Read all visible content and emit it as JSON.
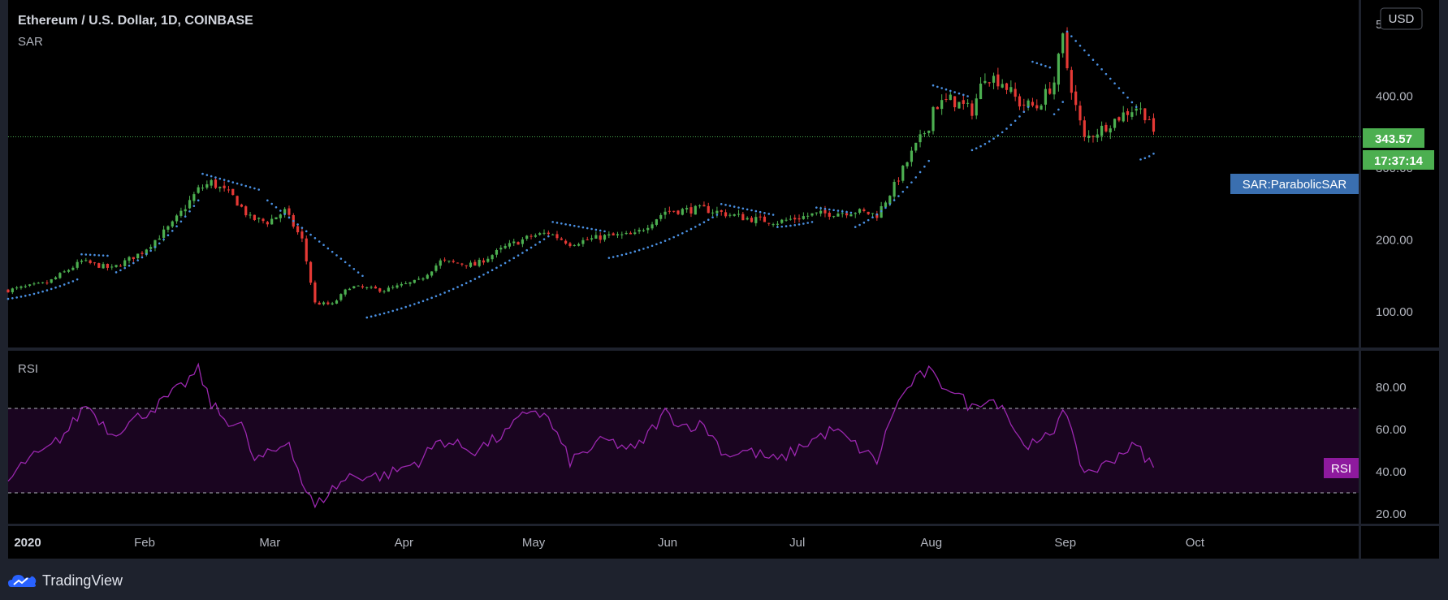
{
  "header": {
    "title": "Ethereum / U.S. Dollar, 1D, COINBASE",
    "indicator": "SAR",
    "currency_button": "USD"
  },
  "price_tags": {
    "last_price": "343.57",
    "countdown": "17:37:14",
    "sar_label": "SAR:ParabolicSAR",
    "rsi_label": "RSI"
  },
  "rsi_pane": {
    "title": "RSI"
  },
  "brand": {
    "name": "TradingView"
  },
  "colors": {
    "background": "#000000",
    "frame": "#1e222d",
    "up": "#26a69a",
    "up_candle": "#4caf50",
    "down": "#e53935",
    "sar": "#4a90e2",
    "rsi_line": "#9c27b0",
    "rsi_band": "#1a0520",
    "last_price_tag": "#4caf50",
    "sar_tag": "#3a6fb0",
    "rsi_tag": "#8e1a9e"
  },
  "chart_data": [
    {
      "type": "candlestick",
      "title": "Ethereum / U.S. Dollar, 1D, COINBASE",
      "indicator": "SAR",
      "y_ticks": [
        "100.00",
        "200.00",
        "300.00",
        "400.00",
        "500.00"
      ],
      "ylim": [
        50,
        510
      ],
      "x_ticks": [
        "2020",
        "Feb",
        "Mar",
        "Apr",
        "May",
        "Jun",
        "Jul",
        "Aug",
        "Sep",
        "Oct"
      ],
      "xlim": [
        "2020-01-01",
        "2020-10-31"
      ],
      "last_price": 343.57,
      "close_anchors": [
        {
          "date": "2020-01-01",
          "value": 130
        },
        {
          "date": "2020-01-10",
          "value": 140
        },
        {
          "date": "2020-01-18",
          "value": 170
        },
        {
          "date": "2020-01-25",
          "value": 160
        },
        {
          "date": "2020-02-01",
          "value": 183
        },
        {
          "date": "2020-02-08",
          "value": 222
        },
        {
          "date": "2020-02-14",
          "value": 270
        },
        {
          "date": "2020-02-17",
          "value": 280
        },
        {
          "date": "2020-02-22",
          "value": 260
        },
        {
          "date": "2020-02-26",
          "value": 230
        },
        {
          "date": "2020-03-01",
          "value": 225
        },
        {
          "date": "2020-03-05",
          "value": 240
        },
        {
          "date": "2020-03-09",
          "value": 200
        },
        {
          "date": "2020-03-12",
          "value": 112
        },
        {
          "date": "2020-03-16",
          "value": 110
        },
        {
          "date": "2020-03-20",
          "value": 135
        },
        {
          "date": "2020-03-28",
          "value": 130
        },
        {
          "date": "2020-04-05",
          "value": 143
        },
        {
          "date": "2020-04-10",
          "value": 170
        },
        {
          "date": "2020-04-18",
          "value": 165
        },
        {
          "date": "2020-04-25",
          "value": 190
        },
        {
          "date": "2020-05-01",
          "value": 205
        },
        {
          "date": "2020-05-05",
          "value": 210
        },
        {
          "date": "2020-05-10",
          "value": 195
        },
        {
          "date": "2020-05-18",
          "value": 205
        },
        {
          "date": "2020-05-25",
          "value": 207
        },
        {
          "date": "2020-06-01",
          "value": 240
        },
        {
          "date": "2020-06-10",
          "value": 243
        },
        {
          "date": "2020-06-20",
          "value": 230
        },
        {
          "date": "2020-06-27",
          "value": 225
        },
        {
          "date": "2020-07-05",
          "value": 235
        },
        {
          "date": "2020-07-15",
          "value": 240
        },
        {
          "date": "2020-07-20",
          "value": 235
        },
        {
          "date": "2020-07-24",
          "value": 275
        },
        {
          "date": "2020-07-28",
          "value": 320
        },
        {
          "date": "2020-08-01",
          "value": 360
        },
        {
          "date": "2020-08-02",
          "value": 385
        },
        {
          "date": "2020-08-06",
          "value": 395
        },
        {
          "date": "2020-08-11",
          "value": 380
        },
        {
          "date": "2020-08-14",
          "value": 430
        },
        {
          "date": "2020-08-18",
          "value": 420
        },
        {
          "date": "2020-08-22",
          "value": 390
        },
        {
          "date": "2020-08-26",
          "value": 385
        },
        {
          "date": "2020-08-30",
          "value": 420
        },
        {
          "date": "2020-09-01",
          "value": 480
        },
        {
          "date": "2020-09-02",
          "value": 440
        },
        {
          "date": "2020-09-04",
          "value": 385
        },
        {
          "date": "2020-09-06",
          "value": 340
        },
        {
          "date": "2020-09-10",
          "value": 355
        },
        {
          "date": "2020-09-15",
          "value": 375
        },
        {
          "date": "2020-09-18",
          "value": 385
        },
        {
          "date": "2020-09-21",
          "value": 370
        },
        {
          "date": "2020-09-22",
          "value": 343.57
        }
      ],
      "sar_segments": [
        {
          "side": "below",
          "from": "2020-01-01",
          "to": "2020-01-17",
          "start": 118,
          "end": 145
        },
        {
          "side": "above",
          "from": "2020-01-18",
          "to": "2020-01-24",
          "start": 180,
          "end": 178
        },
        {
          "side": "below",
          "from": "2020-01-26",
          "to": "2020-02-14",
          "start": 155,
          "end": 255
        },
        {
          "side": "above",
          "from": "2020-02-15",
          "to": "2020-02-28",
          "start": 292,
          "end": 270
        },
        {
          "side": "above",
          "from": "2020-03-01",
          "to": "2020-03-23",
          "start": 255,
          "end": 150
        },
        {
          "side": "below",
          "from": "2020-03-24",
          "to": "2020-05-05",
          "start": 92,
          "end": 205
        },
        {
          "side": "above",
          "from": "2020-05-06",
          "to": "2020-05-18",
          "start": 225,
          "end": 212
        },
        {
          "side": "below",
          "from": "2020-05-19",
          "to": "2020-06-13",
          "start": 175,
          "end": 235
        },
        {
          "side": "above",
          "from": "2020-06-14",
          "to": "2020-06-26",
          "start": 250,
          "end": 235
        },
        {
          "side": "below",
          "from": "2020-06-27",
          "to": "2020-07-05",
          "start": 218,
          "end": 225
        },
        {
          "side": "above",
          "from": "2020-07-06",
          "to": "2020-07-14",
          "start": 245,
          "end": 238
        },
        {
          "side": "below",
          "from": "2020-07-15",
          "to": "2020-08-01",
          "start": 218,
          "end": 310
        },
        {
          "side": "above",
          "from": "2020-08-02",
          "to": "2020-08-10",
          "start": 415,
          "end": 400
        },
        {
          "side": "below",
          "from": "2020-08-11",
          "to": "2020-08-24",
          "start": 325,
          "end": 385
        },
        {
          "side": "above",
          "from": "2020-08-25",
          "to": "2020-08-29",
          "start": 448,
          "end": 440
        },
        {
          "side": "below",
          "from": "2020-08-30",
          "to": "2020-09-01",
          "start": 375,
          "end": 392
        },
        {
          "side": "above",
          "from": "2020-09-02",
          "to": "2020-09-18",
          "start": 490,
          "end": 385
        },
        {
          "side": "below",
          "from": "2020-09-19",
          "to": "2020-09-22",
          "start": 312,
          "end": 320
        }
      ]
    },
    {
      "type": "line",
      "title": "RSI",
      "y_ticks": [
        "20.00",
        "40.00",
        "60.00",
        "80.00"
      ],
      "ylim": [
        16,
        98
      ],
      "band": [
        30,
        70
      ],
      "anchors": [
        {
          "date": "2020-01-01",
          "value": 35
        },
        {
          "date": "2020-01-05",
          "value": 45
        },
        {
          "date": "2020-01-10",
          "value": 50
        },
        {
          "date": "2020-01-15",
          "value": 60
        },
        {
          "date": "2020-01-19",
          "value": 72
        },
        {
          "date": "2020-01-25",
          "value": 58
        },
        {
          "date": "2020-02-01",
          "value": 67
        },
        {
          "date": "2020-02-05",
          "value": 72
        },
        {
          "date": "2020-02-10",
          "value": 80
        },
        {
          "date": "2020-02-14",
          "value": 88
        },
        {
          "date": "2020-02-17",
          "value": 72
        },
        {
          "date": "2020-02-20",
          "value": 65
        },
        {
          "date": "2020-02-24",
          "value": 62
        },
        {
          "date": "2020-02-27",
          "value": 45
        },
        {
          "date": "2020-03-03",
          "value": 50
        },
        {
          "date": "2020-03-06",
          "value": 55
        },
        {
          "date": "2020-03-09",
          "value": 35
        },
        {
          "date": "2020-03-12",
          "value": 23
        },
        {
          "date": "2020-03-15",
          "value": 30
        },
        {
          "date": "2020-03-20",
          "value": 38
        },
        {
          "date": "2020-03-28",
          "value": 38
        },
        {
          "date": "2020-04-05",
          "value": 45
        },
        {
          "date": "2020-04-10",
          "value": 55
        },
        {
          "date": "2020-04-18",
          "value": 50
        },
        {
          "date": "2020-04-25",
          "value": 58
        },
        {
          "date": "2020-05-01",
          "value": 70
        },
        {
          "date": "2020-05-05",
          "value": 65
        },
        {
          "date": "2020-05-10",
          "value": 45
        },
        {
          "date": "2020-05-18",
          "value": 55
        },
        {
          "date": "2020-05-25",
          "value": 50
        },
        {
          "date": "2020-06-01",
          "value": 68
        },
        {
          "date": "2020-06-05",
          "value": 62
        },
        {
          "date": "2020-06-10",
          "value": 62
        },
        {
          "date": "2020-06-15",
          "value": 48
        },
        {
          "date": "2020-06-20",
          "value": 50
        },
        {
          "date": "2020-06-27",
          "value": 45
        },
        {
          "date": "2020-07-05",
          "value": 55
        },
        {
          "date": "2020-07-10",
          "value": 60
        },
        {
          "date": "2020-07-20",
          "value": 45
        },
        {
          "date": "2020-07-24",
          "value": 70
        },
        {
          "date": "2020-07-28",
          "value": 82
        },
        {
          "date": "2020-08-01",
          "value": 88
        },
        {
          "date": "2020-08-03",
          "value": 82
        },
        {
          "date": "2020-08-06",
          "value": 80
        },
        {
          "date": "2020-08-11",
          "value": 70
        },
        {
          "date": "2020-08-14",
          "value": 75
        },
        {
          "date": "2020-08-18",
          "value": 72
        },
        {
          "date": "2020-08-22",
          "value": 55
        },
        {
          "date": "2020-08-26",
          "value": 52
        },
        {
          "date": "2020-08-30",
          "value": 60
        },
        {
          "date": "2020-09-01",
          "value": 72
        },
        {
          "date": "2020-09-02",
          "value": 65
        },
        {
          "date": "2020-09-04",
          "value": 50
        },
        {
          "date": "2020-09-06",
          "value": 40
        },
        {
          "date": "2020-09-10",
          "value": 42
        },
        {
          "date": "2020-09-15",
          "value": 50
        },
        {
          "date": "2020-09-18",
          "value": 52
        },
        {
          "date": "2020-09-21",
          "value": 45
        },
        {
          "date": "2020-09-22",
          "value": 42
        }
      ]
    }
  ]
}
